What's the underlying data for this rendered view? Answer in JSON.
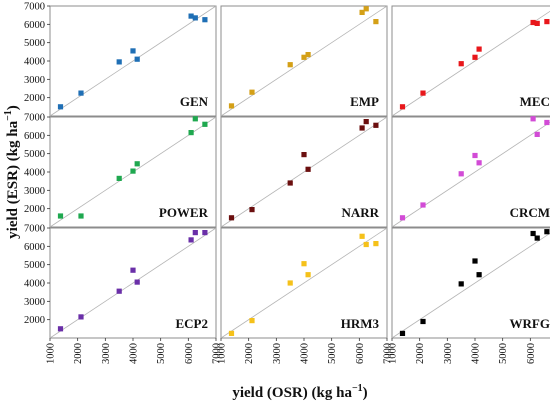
{
  "chart_data": {
    "type": "scatter",
    "xlabel": "yield (OSR) (kg ha",
    "xlabel_sup": "−1",
    "xlabel_end": ")",
    "ylabel": "yield (ESR) (kg ha",
    "ylabel_sup": "−1",
    "ylabel_end": ")",
    "xticks": [
      "1000",
      "2000",
      "3000",
      "4000",
      "5000",
      "6000",
      "7000"
    ],
    "yticks": [
      "2000",
      "3000",
      "4000",
      "5000",
      "6000",
      "7000"
    ],
    "xlim": [
      1000,
      7000
    ],
    "ylim": [
      1000,
      7000
    ],
    "grid": false,
    "reference_line": "1:1",
    "x": [
      1380,
      2120,
      3500,
      4000,
      4150,
      6100,
      6250,
      6600
    ],
    "panels": [
      {
        "name": "GEN",
        "color": "#1f6fb5",
        "y": [
          1500,
          2250,
          3950,
          4550,
          4100,
          6450,
          6350,
          6250
        ]
      },
      {
        "name": "EMP",
        "color": "#d4a017",
        "y": [
          1550,
          2300,
          3800,
          4200,
          4350,
          6650,
          6850,
          6150
        ]
      },
      {
        "name": "MEC",
        "color": "#e8171b",
        "y": [
          1500,
          2250,
          3850,
          4200,
          4650,
          6100,
          6050,
          6150
        ]
      },
      {
        "name": "POWER",
        "color": "#1fa84f",
        "y": [
          1600,
          1600,
          3650,
          4050,
          4450,
          6150,
          6900,
          6600
        ]
      },
      {
        "name": "NARR",
        "color": "#6b0f0f",
        "y": [
          1500,
          1950,
          3400,
          4950,
          4150,
          6400,
          6750,
          6550
        ]
      },
      {
        "name": "CRCM",
        "color": "#d24bd6",
        "y": [
          1500,
          2200,
          3900,
          4900,
          4500,
          6900,
          6050,
          6700
        ]
      },
      {
        "name": "ECP2",
        "color": "#6a2fa8",
        "y": [
          1500,
          2150,
          3550,
          4700,
          4050,
          6350,
          6750,
          6750
        ]
      },
      {
        "name": "HRM3",
        "color": "#f5c11a",
        "y": [
          1250,
          1950,
          4000,
          5050,
          4450,
          6550,
          6100,
          6150
        ]
      },
      {
        "name": "WRFG",
        "color": "#000000",
        "y": [
          1250,
          1900,
          3950,
          5200,
          4450,
          6700,
          6450,
          6800
        ]
      }
    ]
  }
}
